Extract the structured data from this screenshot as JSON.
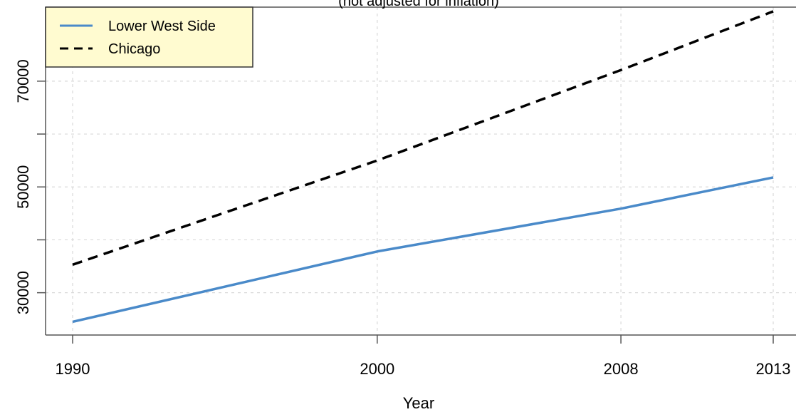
{
  "chart_data": {
    "type": "line",
    "title": "",
    "subtitle": "(not adjusted for inflation)",
    "xlabel": "Year",
    "ylabel": "",
    "x": [
      1990,
      2000,
      2008,
      2013
    ],
    "x_tick_labels": [
      "1990",
      "2000",
      "2008",
      "2013"
    ],
    "y_tick_labels": [
      "30000",
      "50000",
      "70000"
    ],
    "y_ticks": [
      30000,
      40000,
      50000,
      60000,
      70000
    ],
    "xlim": [
      1990,
      2013
    ],
    "ylim": [
      22000,
      84000
    ],
    "grid": true,
    "legend_position": "top-left",
    "series": [
      {
        "name": "Lower West Side",
        "values": [
          24500,
          37800,
          45900,
          51800
        ],
        "color": "#4a8ac9",
        "style": "solid"
      },
      {
        "name": "Chicago",
        "values": [
          35300,
          55000,
          72100,
          83200
        ],
        "color": "#000000",
        "style": "dashed"
      }
    ]
  }
}
